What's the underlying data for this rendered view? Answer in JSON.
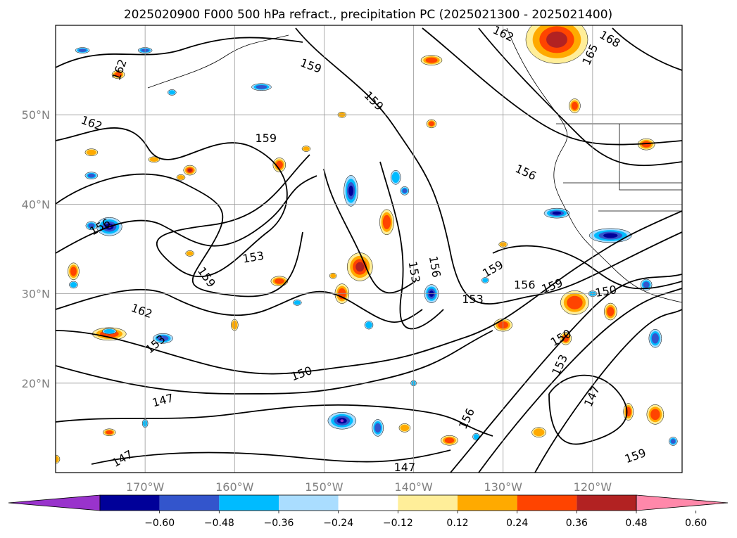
{
  "title": "2025020900 F000 500 hPa refract., precipitation PC (2025021300 - 2025021400)",
  "chart_data": {
    "type": "heatmap",
    "title": "2025020900 F000 500 hPa refract., precipitation PC (2025021300 - 2025021400)",
    "map": {
      "lon_range": [
        -180,
        -110
      ],
      "lat_range": [
        10,
        60
      ],
      "grid": true,
      "x_ticks": [
        {
          "lon": -170,
          "label": "170°W"
        },
        {
          "lon": -160,
          "label": "160°W"
        },
        {
          "lon": -150,
          "label": "150°W"
        },
        {
          "lon": -140,
          "label": "140°W"
        },
        {
          "lon": -130,
          "label": "130°W"
        },
        {
          "lon": -120,
          "label": "120°W"
        }
      ],
      "y_ticks": [
        {
          "lat": 20,
          "label": "20°N"
        },
        {
          "lat": 30,
          "label": "30°N"
        },
        {
          "lat": 40,
          "label": "40°N"
        },
        {
          "lat": 50,
          "label": "50°N"
        }
      ]
    },
    "contour_labels": [
      {
        "text": "162",
        "lon": -172.8,
        "lat": 55.0,
        "rot": -70
      },
      {
        "text": "162",
        "lon": -176,
        "lat": 49.0,
        "rot": 20
      },
      {
        "text": "159",
        "lon": -151.5,
        "lat": 55.4,
        "rot": 20
      },
      {
        "text": "159",
        "lon": -144.5,
        "lat": 51.5,
        "rot": 45
      },
      {
        "text": "162",
        "lon": -130,
        "lat": 59.0,
        "rot": 25
      },
      {
        "text": "168",
        "lon": -118.1,
        "lat": 58.4,
        "rot": 30
      },
      {
        "text": "165",
        "lon": -120.2,
        "lat": 56.7,
        "rot": -65
      },
      {
        "text": "159",
        "lon": -156.5,
        "lat": 47.3,
        "rot": 0
      },
      {
        "text": "156",
        "lon": -127.5,
        "lat": 43.5,
        "rot": 25
      },
      {
        "text": "156",
        "lon": -175,
        "lat": 37.4,
        "rot": -30
      },
      {
        "text": "153",
        "lon": -157.9,
        "lat": 34.0,
        "rot": -10
      },
      {
        "text": "159",
        "lon": -163.2,
        "lat": 31.8,
        "rot": 55
      },
      {
        "text": "153",
        "lon": -140.0,
        "lat": 32.4,
        "rot": 80
      },
      {
        "text": "156",
        "lon": -137.7,
        "lat": 33.0,
        "rot": 80
      },
      {
        "text": "159",
        "lon": -131.1,
        "lat": 32.7,
        "rot": -30
      },
      {
        "text": "156",
        "lon": -127.6,
        "lat": 30.9,
        "rot": 0
      },
      {
        "text": "159",
        "lon": -124.5,
        "lat": 30.8,
        "rot": -20
      },
      {
        "text": "150",
        "lon": -118.5,
        "lat": 30.2,
        "rot": -10
      },
      {
        "text": "153",
        "lon": -133.4,
        "lat": 29.3,
        "rot": 0
      },
      {
        "text": "162",
        "lon": -170.4,
        "lat": 28.0,
        "rot": 20
      },
      {
        "text": "153",
        "lon": -168.8,
        "lat": 24.3,
        "rot": -40
      },
      {
        "text": "150",
        "lon": -123.5,
        "lat": 25.0,
        "rot": -30
      },
      {
        "text": "150",
        "lon": -152.5,
        "lat": 21.0,
        "rot": -20
      },
      {
        "text": "147",
        "lon": -168.0,
        "lat": 18.0,
        "rot": -15
      },
      {
        "text": "156",
        "lon": -134.0,
        "lat": 16.0,
        "rot": -65
      },
      {
        "text": "147",
        "lon": -172.5,
        "lat": 11.5,
        "rot": -30
      },
      {
        "text": "147",
        "lon": -141.0,
        "lat": 10.5,
        "rot": 0
      },
      {
        "text": "159",
        "lon": -115.2,
        "lat": 11.8,
        "rot": -20
      },
      {
        "text": "153",
        "lon": -123.6,
        "lat": 22.0,
        "rot": -65
      },
      {
        "text": "147",
        "lon": -120.0,
        "lat": 18.5,
        "rot": -65
      }
    ],
    "precip_blobs": [
      {
        "lon": -124,
        "lat": 58.4,
        "rx": 44,
        "ry": 34,
        "level": 0.48
      },
      {
        "lon": -138,
        "lat": 56.1,
        "rx": 15,
        "ry": 7,
        "level": 0.36
      },
      {
        "lon": -173,
        "lat": 54.5,
        "rx": 9,
        "ry": 6,
        "level": 0.36
      },
      {
        "lon": -165,
        "lat": 43.8,
        "rx": 9,
        "ry": 7,
        "level": 0.48
      },
      {
        "lon": -155,
        "lat": 44.4,
        "rx": 9,
        "ry": 10,
        "level": 0.36
      },
      {
        "lon": -138,
        "lat": 49.0,
        "rx": 7,
        "ry": 6,
        "level": 0.36
      },
      {
        "lon": -122,
        "lat": 51.0,
        "rx": 8,
        "ry": 10,
        "level": 0.36
      },
      {
        "lon": -114,
        "lat": 46.7,
        "rx": 12,
        "ry": 8,
        "level": 0.36
      },
      {
        "lon": -143,
        "lat": 38.0,
        "rx": 10,
        "ry": 18,
        "level": 0.36
      },
      {
        "lon": -146,
        "lat": 33.0,
        "rx": 18,
        "ry": 20,
        "level": 0.48
      },
      {
        "lon": -148,
        "lat": 30.0,
        "rx": 10,
        "ry": 14,
        "level": 0.36
      },
      {
        "lon": -155,
        "lat": 31.4,
        "rx": 12,
        "ry": 7,
        "level": 0.36
      },
      {
        "lon": -178,
        "lat": 32.5,
        "rx": 8,
        "ry": 12,
        "level": 0.36
      },
      {
        "lon": -174,
        "lat": 25.5,
        "rx": 24,
        "ry": 9,
        "level": 0.36
      },
      {
        "lon": -122,
        "lat": 29.0,
        "rx": 20,
        "ry": 17,
        "level": 0.36
      },
      {
        "lon": -118,
        "lat": 28.0,
        "rx": 9,
        "ry": 12,
        "level": 0.36
      },
      {
        "lon": -123,
        "lat": 25.0,
        "rx": 8,
        "ry": 9,
        "level": 0.36
      },
      {
        "lon": -130,
        "lat": 26.5,
        "rx": 13,
        "ry": 9,
        "level": 0.36
      },
      {
        "lon": -113,
        "lat": 16.5,
        "rx": 12,
        "ry": 14,
        "level": 0.36
      },
      {
        "lon": -116,
        "lat": 16.8,
        "rx": 7,
        "ry": 12,
        "level": 0.36
      },
      {
        "lon": -136,
        "lat": 13.6,
        "rx": 12,
        "ry": 7,
        "level": 0.36
      },
      {
        "lon": -126,
        "lat": 14.5,
        "rx": 10,
        "ry": 7,
        "level": 0.24
      },
      {
        "lon": -141,
        "lat": 15.0,
        "rx": 8,
        "ry": 6,
        "level": 0.24
      },
      {
        "lon": -180,
        "lat": 11.5,
        "rx": 6,
        "ry": 6,
        "level": 0.24
      },
      {
        "lon": -176,
        "lat": 45.8,
        "rx": 9,
        "ry": 5,
        "level": 0.24
      },
      {
        "lon": -174,
        "lat": 14.5,
        "rx": 9,
        "ry": 5,
        "level": 0.36
      },
      {
        "lon": -169,
        "lat": 45.0,
        "rx": 8,
        "ry": 4,
        "level": 0.24
      },
      {
        "lon": -166,
        "lat": 43.0,
        "rx": 6,
        "ry": 4,
        "level": 0.24
      },
      {
        "lon": -152,
        "lat": 46.2,
        "rx": 6,
        "ry": 4,
        "level": 0.24
      },
      {
        "lon": -148,
        "lat": 50.0,
        "rx": 6,
        "ry": 4,
        "level": 0.24
      },
      {
        "lon": -160,
        "lat": 26.5,
        "rx": 5,
        "ry": 8,
        "level": 0.24
      },
      {
        "lon": -165,
        "lat": 34.5,
        "rx": 6,
        "ry": 4,
        "level": 0.24
      },
      {
        "lon": -149,
        "lat": 32.0,
        "rx": 5,
        "ry": 4,
        "level": 0.24
      },
      {
        "lon": -130,
        "lat": 35.5,
        "rx": 6,
        "ry": 4,
        "level": 0.24
      }
    ],
    "neg_blobs": [
      {
        "lon": -147,
        "lat": 41.5,
        "rx": 10,
        "ry": 22,
        "level": -0.48
      },
      {
        "lon": -174,
        "lat": 37.5,
        "rx": 18,
        "ry": 13,
        "level": -0.6
      },
      {
        "lon": -176,
        "lat": 37.6,
        "rx": 8,
        "ry": 6,
        "level": -0.36
      },
      {
        "lon": -118,
        "lat": 36.5,
        "rx": 30,
        "ry": 10,
        "level": -0.48
      },
      {
        "lon": -124,
        "lat": 39.0,
        "rx": 18,
        "ry": 7,
        "level": -0.48
      },
      {
        "lon": -142,
        "lat": 43.0,
        "rx": 7,
        "ry": 10,
        "level": -0.24
      },
      {
        "lon": -138,
        "lat": 30.0,
        "rx": 10,
        "ry": 13,
        "level": -0.48
      },
      {
        "lon": -148,
        "lat": 15.8,
        "rx": 20,
        "ry": 12,
        "level": -0.6
      },
      {
        "lon": -144,
        "lat": 15.0,
        "rx": 8,
        "ry": 12,
        "level": -0.36
      },
      {
        "lon": -168,
        "lat": 25.0,
        "rx": 14,
        "ry": 7,
        "level": -0.36
      },
      {
        "lon": -174,
        "lat": 25.8,
        "rx": 10,
        "ry": 4,
        "level": -0.24
      },
      {
        "lon": -178,
        "lat": 31.0,
        "rx": 6,
        "ry": 5,
        "level": -0.24
      },
      {
        "lon": -157,
        "lat": 53.1,
        "rx": 14,
        "ry": 5,
        "level": -0.36
      },
      {
        "lon": -177,
        "lat": 57.2,
        "rx": 10,
        "ry": 4,
        "level": -0.36
      },
      {
        "lon": -167,
        "lat": 52.5,
        "rx": 6,
        "ry": 4,
        "level": -0.24
      },
      {
        "lon": -170,
        "lat": 57.2,
        "rx": 10,
        "ry": 4,
        "level": -0.36
      },
      {
        "lon": -176,
        "lat": 43.2,
        "rx": 9,
        "ry": 5,
        "level": -0.36
      },
      {
        "lon": -113,
        "lat": 25.0,
        "rx": 9,
        "ry": 13,
        "level": -0.36
      },
      {
        "lon": -114,
        "lat": 31.0,
        "rx": 8,
        "ry": 8,
        "level": -0.36
      },
      {
        "lon": -145,
        "lat": 26.5,
        "rx": 6,
        "ry": 6,
        "level": -0.24
      },
      {
        "lon": -141,
        "lat": 41.5,
        "rx": 6,
        "ry": 6,
        "level": -0.36
      },
      {
        "lon": -153,
        "lat": 29.0,
        "rx": 6,
        "ry": 4,
        "level": -0.24
      },
      {
        "lon": -132,
        "lat": 31.5,
        "rx": 5,
        "ry": 4,
        "level": -0.24
      },
      {
        "lon": -120,
        "lat": 30.0,
        "rx": 6,
        "ry": 4,
        "level": -0.24
      },
      {
        "lon": -170,
        "lat": 15.5,
        "rx": 4,
        "ry": 6,
        "level": -0.24
      },
      {
        "lon": -140,
        "lat": 20.0,
        "rx": 4,
        "ry": 4,
        "level": -0.24
      },
      {
        "lon": -133,
        "lat": 14.0,
        "rx": 5,
        "ry": 5,
        "level": -0.24
      },
      {
        "lon": -111,
        "lat": 13.5,
        "rx": 6,
        "ry": 6,
        "level": -0.36
      }
    ],
    "colorbar": {
      "tick_values": [
        -0.6,
        -0.48,
        -0.36,
        -0.24,
        -0.12,
        0.12,
        0.24,
        0.36,
        0.48,
        0.6
      ],
      "tick_labels": [
        "−0.60",
        "−0.48",
        "−0.36",
        "−0.24",
        "−0.12",
        "0.12",
        "0.24",
        "0.36",
        "0.48",
        "0.60"
      ],
      "colors": [
        "#9933cc",
        "#000099",
        "#3355cc",
        "#00bbff",
        "#aaddff",
        "#ffffff",
        "#ffee99",
        "#ffaa00",
        "#ff4400",
        "#b22222",
        "#ff88aa"
      ],
      "extend": "both"
    }
  }
}
